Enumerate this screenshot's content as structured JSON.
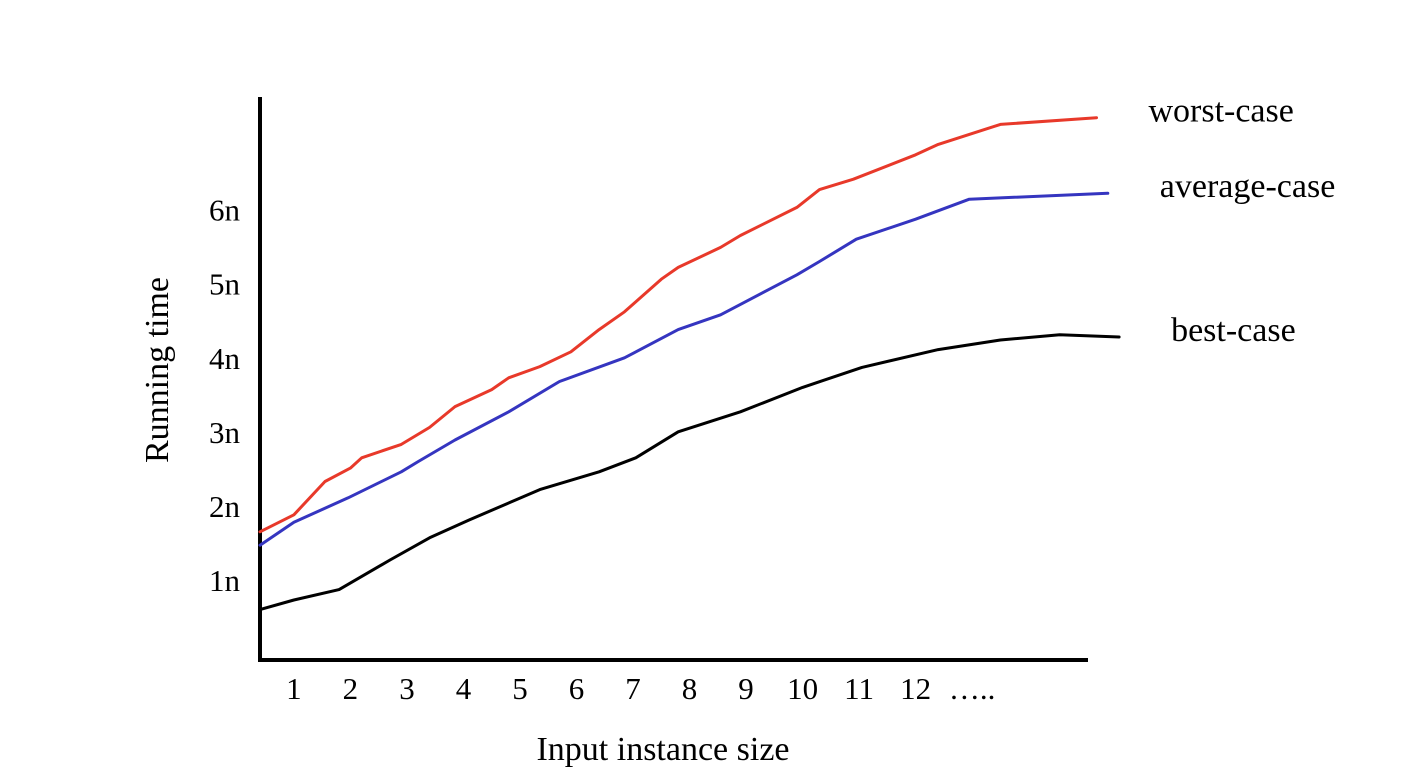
{
  "chart_data": {
    "type": "line",
    "x_label": "Input instance size",
    "y_label": "Running time",
    "xlim": [
      0.4,
      15.05
    ],
    "ylim": [
      0,
      7.6
    ],
    "xticks": [
      1,
      2,
      3,
      4,
      5,
      6,
      7,
      8,
      9,
      10,
      11,
      12,
      {
        "value": 13,
        "label": "….."
      }
    ],
    "yticks": [
      {
        "value": 1,
        "label": "1n"
      },
      {
        "value": 2,
        "label": "2n"
      },
      {
        "value": 3,
        "label": "3n"
      },
      {
        "value": 4,
        "label": "4n"
      },
      {
        "value": 5,
        "label": "5n"
      },
      {
        "value": 6,
        "label": "6n"
      }
    ],
    "series": [
      {
        "name": "worst-case",
        "color": "#e8392a",
        "label_color": "#e8392a",
        "x": [
          0.4,
          1,
          1.55,
          2,
          2.2,
          2.9,
          3.4,
          3.85,
          4.5,
          4.8,
          5.35,
          5.9,
          6.4,
          6.85,
          7.5,
          7.8,
          8.55,
          8.9,
          9.9,
          10.3,
          10.9,
          12,
          12.4,
          13.5,
          15.2
        ],
        "values": [
          1.73,
          1.96,
          2.41,
          2.59,
          2.73,
          2.91,
          3.14,
          3.42,
          3.65,
          3.81,
          3.96,
          4.16,
          4.46,
          4.7,
          5.14,
          5.3,
          5.57,
          5.73,
          6.11,
          6.35,
          6.49,
          6.82,
          6.96,
          7.23,
          7.32
        ]
      },
      {
        "name": "average-case",
        "color": "#3535c0",
        "label_color": "#000000",
        "x": [
          0.4,
          1,
          1.96,
          2.9,
          3.2,
          3.85,
          4.8,
          5.7,
          6.85,
          7.8,
          8.55,
          8.9,
          9.9,
          10.3,
          10.95,
          12,
          12.95,
          15.4
        ],
        "values": [
          1.55,
          1.86,
          2.19,
          2.54,
          2.68,
          2.97,
          3.35,
          3.76,
          4.08,
          4.46,
          4.66,
          4.8,
          5.2,
          5.38,
          5.68,
          5.95,
          6.22,
          6.3
        ]
      },
      {
        "name": "best-case",
        "color": "#000000",
        "label_color": "#000000",
        "x": [
          0.4,
          1,
          1.8,
          2.7,
          3.4,
          4.1,
          5.35,
          6.4,
          7.05,
          7.8,
          8.9,
          10,
          11.05,
          12.4,
          13.5,
          14.55,
          15.6
        ],
        "values": [
          0.68,
          0.81,
          0.95,
          1.35,
          1.65,
          1.89,
          2.3,
          2.54,
          2.73,
          3.08,
          3.35,
          3.68,
          3.95,
          4.19,
          4.32,
          4.39,
          4.36
        ]
      }
    ]
  }
}
